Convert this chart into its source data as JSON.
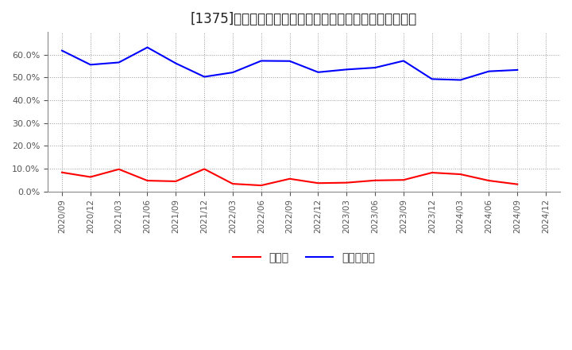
{
  "title": "[1375]　現預金、有利子負債の総資産に対する比率の推移",
  "x_labels": [
    "2020/09",
    "2020/12",
    "2021/03",
    "2021/06",
    "2021/09",
    "2021/12",
    "2022/03",
    "2022/06",
    "2022/09",
    "2022/12",
    "2023/03",
    "2023/06",
    "2023/09",
    "2023/12",
    "2024/03",
    "2024/06",
    "2024/09",
    "2024/12"
  ],
  "cash_ratio": [
    0.083,
    0.063,
    0.097,
    0.047,
    0.044,
    0.098,
    0.033,
    0.026,
    0.055,
    0.036,
    0.038,
    0.048,
    0.05,
    0.082,
    0.075,
    0.047,
    0.031,
    null
  ],
  "debt_ratio": [
    0.618,
    0.556,
    0.566,
    0.632,
    0.562,
    0.503,
    0.522,
    0.573,
    0.572,
    0.523,
    0.535,
    0.543,
    0.573,
    0.493,
    0.489,
    0.527,
    0.533,
    null
  ],
  "cash_color": "#ff0000",
  "debt_color": "#0000ff",
  "background_color": "#ffffff",
  "plot_bg_color": "#ffffff",
  "grid_color": "#999999",
  "ylim": [
    0.0,
    0.7
  ],
  "yticks": [
    0.0,
    0.1,
    0.2,
    0.3,
    0.4,
    0.5,
    0.6
  ],
  "legend_cash": "現預金",
  "legend_debt": "有利子負債",
  "title_fontsize": 12,
  "legend_fontsize": 10,
  "tick_fontsize": 7.5,
  "ytick_fontsize": 8
}
